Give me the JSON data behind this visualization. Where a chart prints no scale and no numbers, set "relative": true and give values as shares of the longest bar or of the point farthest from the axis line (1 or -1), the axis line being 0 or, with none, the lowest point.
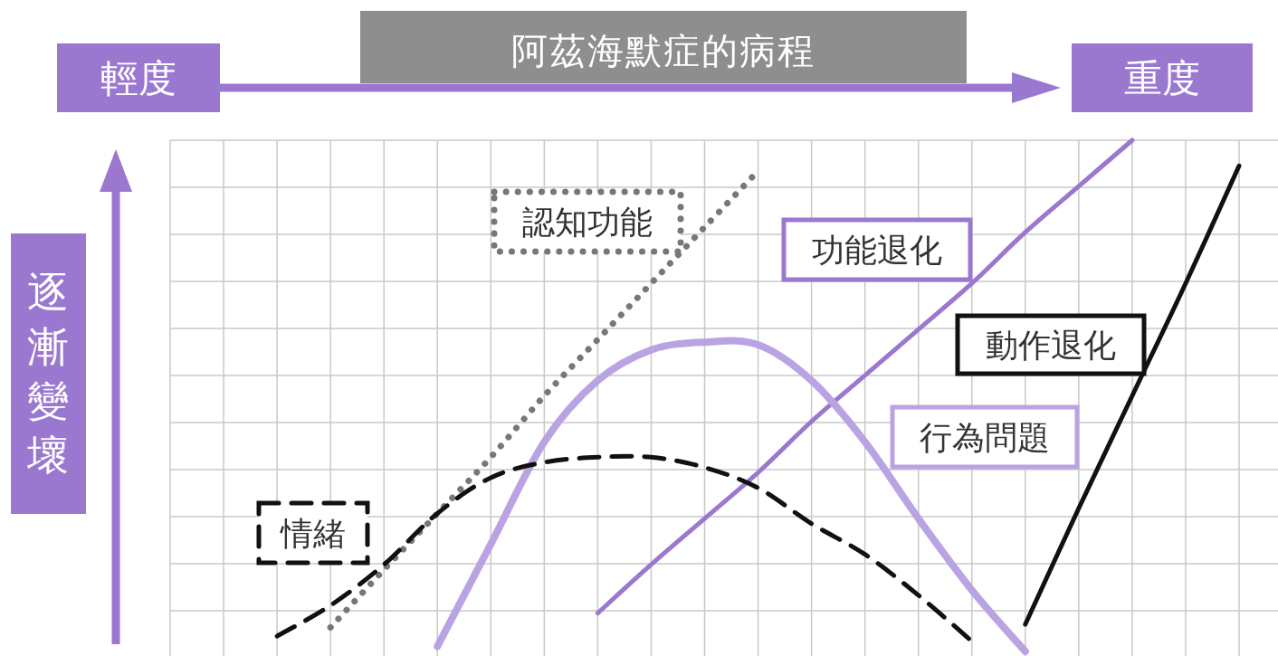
{
  "chart_data": {
    "type": "line",
    "title": "阿茲海默症的病程",
    "ylabel": "逐漸變壞",
    "annotations": [
      "輕度",
      "重度"
    ],
    "relative": true,
    "grid": true,
    "legend": false,
    "marker": "none",
    "categories": [
      null,
      null,
      null,
      null,
      null,
      null,
      null,
      null,
      null,
      null,
      null,
      null,
      null,
      null,
      null,
      null,
      null,
      null,
      null,
      null,
      null
    ],
    "series": [
      {
        "name": "認知功能",
        "color": "#777777",
        "line_style": "dotted",
        "values": [
          null,
          null,
          null,
          0.047,
          0.16,
          0.27,
          0.38,
          0.5,
          0.61,
          0.72,
          0.83,
          0.94,
          null,
          null,
          null,
          null,
          null,
          null,
          null,
          null,
          null
        ]
      },
      {
        "name": "功能退化",
        "color": "#9b78cf",
        "line_style": "solid",
        "values": [
          null,
          null,
          null,
          null,
          null,
          null,
          null,
          null,
          0.075,
          0.17,
          0.26,
          0.35,
          0.45,
          0.54,
          0.63,
          0.72,
          0.82,
          0.91,
          1.0,
          null,
          null
        ]
      },
      {
        "name": "動作退化",
        "color": "#111111",
        "line_style": "solid",
        "values": [
          null,
          null,
          null,
          null,
          null,
          null,
          null,
          null,
          null,
          null,
          null,
          null,
          null,
          null,
          null,
          null,
          0.053,
          0.28,
          0.5,
          0.72,
          0.95
        ]
      },
      {
        "name": "行為問題",
        "color": "#b9a3e3",
        "line_style": "solid",
        "values": [
          null,
          null,
          null,
          null,
          null,
          0.01,
          0.21,
          0.41,
          0.53,
          0.59,
          0.605,
          0.6,
          0.53,
          0.41,
          0.26,
          0.12,
          0.0,
          null,
          null,
          null,
          null
        ]
      },
      {
        "name": "情緒",
        "color": "#111111",
        "line_style": "dashed",
        "values": [
          null,
          null,
          0.03,
          0.09,
          0.17,
          0.27,
          0.34,
          0.37,
          0.38,
          0.38,
          0.36,
          0.32,
          0.25,
          0.19,
          0.11,
          0.02,
          null,
          null,
          null,
          null,
          null
        ]
      }
    ]
  }
}
